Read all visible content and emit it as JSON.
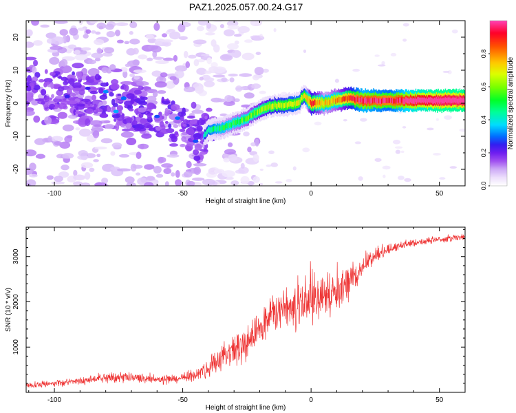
{
  "title": "PAZ1.2025.057.00.24.G17",
  "chart_data": [
    {
      "type": "heatmap",
      "xlabel": "Height of straight line (km)",
      "ylabel": "Frequency (Hz)",
      "xlim": [
        -111,
        60
      ],
      "ylim": [
        -25,
        25
      ],
      "x_ticks": [
        -100,
        -50,
        0,
        50
      ],
      "y_ticks": [
        -20,
        -10,
        0,
        10,
        20
      ],
      "colorbar": {
        "label": "Normalized spectral amplitude",
        "range": [
          0.0,
          1.0
        ],
        "ticks": [
          0.0,
          0.2,
          0.4,
          0.6,
          0.8
        ],
        "colormap": [
          "#ffffff",
          "#d8b8f4",
          "#9a3cf0",
          "#3b1ef0",
          "#0080ff",
          "#00e0ff",
          "#00ff60",
          "#c8ff00",
          "#ffff00",
          "#ff8000",
          "#ff0000",
          "#ff40a0"
        ]
      },
      "ridge": [
        {
          "x": -100,
          "freq": 4,
          "amp": 0.12
        },
        {
          "x": -90,
          "freq": 3,
          "amp": 0.14
        },
        {
          "x": -80,
          "freq": 2,
          "amp": 0.18
        },
        {
          "x": -70,
          "freq": -2,
          "amp": 0.17
        },
        {
          "x": -60,
          "freq": -4,
          "amp": 0.18
        },
        {
          "x": -50,
          "freq": -6,
          "amp": 0.2
        },
        {
          "x": -44,
          "freq": -12,
          "amp": 0.15
        },
        {
          "x": -40,
          "freq": -8,
          "amp": 0.3
        },
        {
          "x": -35,
          "freq": -7.5,
          "amp": 0.35
        },
        {
          "x": -30,
          "freq": -6,
          "amp": 0.38
        },
        {
          "x": -25,
          "freq": -4.5,
          "amp": 0.4
        },
        {
          "x": -20,
          "freq": -2,
          "amp": 0.45
        },
        {
          "x": -15,
          "freq": -0.7,
          "amp": 0.5
        },
        {
          "x": -10,
          "freq": -0.5,
          "amp": 0.52
        },
        {
          "x": -5,
          "freq": 0,
          "amp": 0.55
        },
        {
          "x": -3,
          "freq": 2.5,
          "amp": 0.5
        },
        {
          "x": 0,
          "freq": 0,
          "amp": 0.75
        },
        {
          "x": 5,
          "freq": 0,
          "amp": 0.6
        },
        {
          "x": 10,
          "freq": 1,
          "amp": 0.65
        },
        {
          "x": 15,
          "freq": 1.5,
          "amp": 0.75
        },
        {
          "x": 20,
          "freq": 0.8,
          "amp": 0.85
        },
        {
          "x": 30,
          "freq": 0.8,
          "amp": 0.8
        },
        {
          "x": 40,
          "freq": 0.8,
          "amp": 0.9
        },
        {
          "x": 50,
          "freq": 0.8,
          "amp": 0.95
        },
        {
          "x": 60,
          "freq": 0.8,
          "amp": 0.95
        }
      ]
    },
    {
      "type": "line",
      "xlabel": "Height of straight line (km)",
      "ylabel": "SNR (10 * v/v)",
      "xlim": [
        -111,
        60
      ],
      "ylim": [
        0,
        3650
      ],
      "x_ticks": [
        -100,
        -50,
        0,
        50
      ],
      "y_ticks": [
        1000,
        2000,
        3000
      ],
      "series": [
        {
          "color": "#ee3333",
          "x": [
            -111,
            -100,
            -90,
            -80,
            -70,
            -60,
            -50,
            -45,
            -40,
            -35,
            -30,
            -25,
            -20,
            -15,
            -10,
            -5,
            0,
            5,
            10,
            15,
            20,
            25,
            30,
            35,
            40,
            45,
            50,
            55,
            60
          ],
          "y": [
            150,
            200,
            250,
            320,
            330,
            280,
            300,
            400,
            550,
            700,
            900,
            1150,
            1450,
            1700,
            1850,
            1950,
            2000,
            2100,
            2200,
            2400,
            2750,
            3000,
            3150,
            3250,
            3300,
            3350,
            3380,
            3400,
            3420
          ],
          "noise": [
            80,
            90,
            110,
            130,
            130,
            120,
            130,
            180,
            250,
            350,
            450,
            500,
            550,
            600,
            600,
            650,
            650,
            600,
            550,
            450,
            220,
            180,
            150,
            120,
            100,
            100,
            100,
            100,
            100
          ]
        }
      ]
    }
  ]
}
